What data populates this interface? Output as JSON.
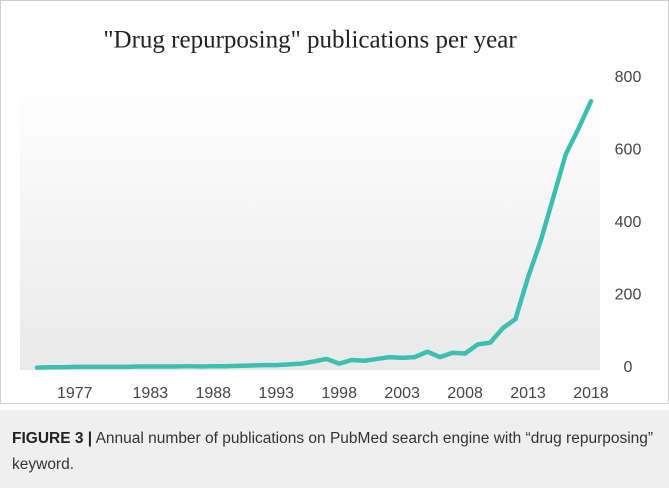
{
  "chart_data": {
    "type": "line",
    "title": "\"Drug repurposing\" publications per year",
    "x": [
      1974,
      1975,
      1976,
      1977,
      1978,
      1979,
      1980,
      1981,
      1982,
      1983,
      1984,
      1985,
      1986,
      1987,
      1988,
      1989,
      1990,
      1991,
      1992,
      1993,
      1994,
      1995,
      1996,
      1997,
      1998,
      1999,
      2000,
      2001,
      2002,
      2003,
      2004,
      2005,
      2006,
      2007,
      2008,
      2009,
      2010,
      2011,
      2012,
      2013,
      2014,
      2015,
      2016,
      2017,
      2018
    ],
    "series": [
      {
        "name": "Publications",
        "color": "#3dbfb0",
        "values": [
          1,
          2,
          2,
          3,
          3,
          3,
          3,
          3,
          4,
          4,
          4,
          4,
          5,
          4,
          5,
          5,
          6,
          7,
          8,
          8,
          10,
          12,
          18,
          25,
          12,
          22,
          20,
          25,
          30,
          28,
          30,
          45,
          30,
          42,
          40,
          65,
          70,
          110,
          135,
          250,
          350,
          470,
          590,
          660,
          736
        ]
      }
    ],
    "xlim": [
      1974,
      2018
    ],
    "xticks": [
      1977,
      1983,
      1988,
      1993,
      1998,
      2003,
      2008,
      2013,
      2018
    ],
    "ylim": [
      0,
      800
    ],
    "yticks": [
      0,
      200,
      400,
      600,
      800
    ]
  },
  "caption": {
    "label": "FIGURE 3 |",
    "text": "Annual number of publications on PubMed search engine with “drug repurposing” keyword."
  }
}
